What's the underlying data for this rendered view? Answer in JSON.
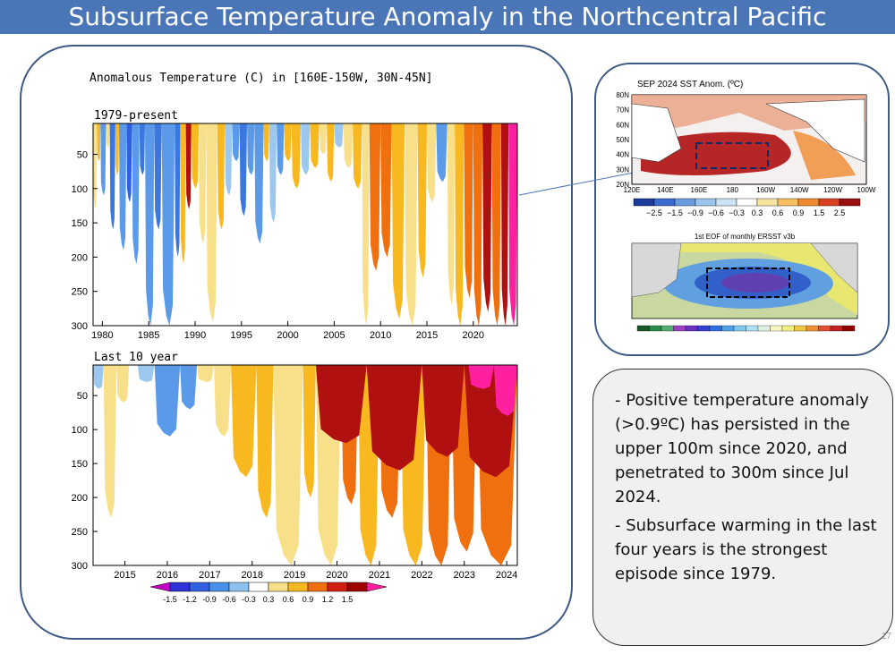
{
  "title": "Subsurface Temperature Anomaly in the Northcentral Pacific",
  "chart_data": [
    {
      "type": "heatmap",
      "title": "Anomalous Temperature (C) in [160E-150W, 30N-45N]",
      "subtitle": "1979-present",
      "x_ticks": [
        "1980",
        "1985",
        "1990",
        "1995",
        "2000",
        "2005",
        "2010",
        "2015",
        "2020"
      ],
      "y_ticks": [
        50,
        100,
        150,
        200,
        250,
        300
      ],
      "xlim": [
        1979.0,
        2024.75
      ],
      "ylim": [
        300,
        5
      ],
      "bands": [
        {
          "x0": 1979.0,
          "x1": 1979.4,
          "depth": 130,
          "value": 0.3
        },
        {
          "x0": 1979.4,
          "x1": 1979.8,
          "depth": 60,
          "value": 0.6
        },
        {
          "x0": 1979.8,
          "x1": 1980.4,
          "depth": 110,
          "value": -0.6
        },
        {
          "x0": 1980.4,
          "x1": 1980.8,
          "depth": 40,
          "value": 0.3
        },
        {
          "x0": 1980.8,
          "x1": 1981.4,
          "depth": 160,
          "value": -0.9
        },
        {
          "x0": 1981.4,
          "x1": 1981.8,
          "depth": 80,
          "value": 0.6
        },
        {
          "x0": 1981.8,
          "x1": 1982.6,
          "depth": 190,
          "value": -0.6
        },
        {
          "x0": 1982.6,
          "x1": 1983.2,
          "depth": 120,
          "value": -1.2
        },
        {
          "x0": 1983.2,
          "x1": 1984.0,
          "depth": 210,
          "value": -0.6
        },
        {
          "x0": 1984.0,
          "x1": 1984.6,
          "depth": 80,
          "value": -0.9
        },
        {
          "x0": 1984.6,
          "x1": 1985.6,
          "depth": 300,
          "value": -0.6
        },
        {
          "x0": 1985.6,
          "x1": 1986.4,
          "depth": 160,
          "value": -0.9
        },
        {
          "x0": 1986.4,
          "x1": 1987.8,
          "depth": 300,
          "value": -0.6
        },
        {
          "x0": 1987.8,
          "x1": 1988.4,
          "depth": 200,
          "value": -0.9
        },
        {
          "x0": 1988.4,
          "x1": 1989.0,
          "depth": 210,
          "value": 0.6
        },
        {
          "x0": 1989.0,
          "x1": 1989.6,
          "depth": 130,
          "value": 1.2
        },
        {
          "x0": 1989.6,
          "x1": 1990.4,
          "depth": 100,
          "value": 0.6
        },
        {
          "x0": 1990.4,
          "x1": 1991.2,
          "depth": 180,
          "value": 0.3
        },
        {
          "x0": 1991.2,
          "x1": 1992.4,
          "depth": 295,
          "value": 0.3
        },
        {
          "x0": 1992.4,
          "x1": 1993.2,
          "depth": 160,
          "value": 0.6
        },
        {
          "x0": 1993.2,
          "x1": 1994.0,
          "depth": 110,
          "value": -0.3
        },
        {
          "x0": 1994.0,
          "x1": 1994.8,
          "depth": 60,
          "value": -0.6
        },
        {
          "x0": 1994.8,
          "x1": 1995.6,
          "depth": 140,
          "value": -0.9
        },
        {
          "x0": 1995.6,
          "x1": 1996.4,
          "depth": 80,
          "value": -0.6
        },
        {
          "x0": 1996.4,
          "x1": 1997.4,
          "depth": 180,
          "value": -0.6
        },
        {
          "x0": 1997.4,
          "x1": 1998.0,
          "depth": 60,
          "value": 0.6
        },
        {
          "x0": 1998.0,
          "x1": 1998.8,
          "depth": 150,
          "value": -0.3
        },
        {
          "x0": 1998.8,
          "x1": 1999.6,
          "depth": 80,
          "value": -0.6
        },
        {
          "x0": 1999.6,
          "x1": 2000.4,
          "depth": 60,
          "value": 0.6
        },
        {
          "x0": 2000.4,
          "x1": 2001.4,
          "depth": 100,
          "value": 0.6
        },
        {
          "x0": 2001.4,
          "x1": 2002.4,
          "depth": 80,
          "value": -0.3
        },
        {
          "x0": 2002.4,
          "x1": 2003.4,
          "depth": 70,
          "value": 0.6
        },
        {
          "x0": 2003.4,
          "x1": 2004.2,
          "depth": 50,
          "value": 0.3
        },
        {
          "x0": 2004.2,
          "x1": 2005.0,
          "depth": 90,
          "value": 0.6
        },
        {
          "x0": 2005.0,
          "x1": 2006.0,
          "depth": 40,
          "value": -0.3
        },
        {
          "x0": 2006.0,
          "x1": 2007.0,
          "depth": 70,
          "value": 0.3
        },
        {
          "x0": 2007.0,
          "x1": 2008.0,
          "depth": 100,
          "value": 0.6
        },
        {
          "x0": 2008.0,
          "x1": 2008.8,
          "depth": 300,
          "value": 0.3
        },
        {
          "x0": 2008.8,
          "x1": 2010.0,
          "depth": 220,
          "value": 0.9
        },
        {
          "x0": 2010.0,
          "x1": 2011.2,
          "depth": 200,
          "value": 0.9
        },
        {
          "x0": 2011.2,
          "x1": 2012.6,
          "depth": 290,
          "value": 0.6
        },
        {
          "x0": 2012.6,
          "x1": 2014.0,
          "depth": 300,
          "value": 0.3
        },
        {
          "x0": 2014.0,
          "x1": 2015.0,
          "depth": 230,
          "value": 0.6
        },
        {
          "x0": 2015.0,
          "x1": 2016.0,
          "depth": 120,
          "value": 0.3
        },
        {
          "x0": 2016.0,
          "x1": 2017.2,
          "depth": 90,
          "value": -0.6
        },
        {
          "x0": 2017.2,
          "x1": 2018.0,
          "depth": 270,
          "value": 0.3
        },
        {
          "x0": 2018.0,
          "x1": 2019.0,
          "depth": 300,
          "value": 0.6
        },
        {
          "x0": 2019.0,
          "x1": 2020.0,
          "depth": 260,
          "value": 0.9
        },
        {
          "x0": 2020.0,
          "x1": 2021.0,
          "depth": 300,
          "value": 0.9
        },
        {
          "x0": 2021.0,
          "x1": 2022.0,
          "depth": 280,
          "value": 1.2
        },
        {
          "x0": 2022.0,
          "x1": 2023.0,
          "depth": 300,
          "value": 0.9
        },
        {
          "x0": 2023.0,
          "x1": 2023.8,
          "depth": 300,
          "value": 1.2
        },
        {
          "x0": 2023.8,
          "x1": 2024.75,
          "depth": 300,
          "value": 1.5
        }
      ]
    },
    {
      "type": "heatmap",
      "subtitle": "Last 10 year",
      "x_ticks": [
        "2015",
        "2016",
        "2017",
        "2018",
        "2019",
        "2020",
        "2021",
        "2022",
        "2023",
        "2024"
      ],
      "y_ticks": [
        50,
        100,
        150,
        200,
        250,
        300
      ],
      "xlim": [
        2014.75,
        2024.75
      ],
      "ylim": [
        300,
        5
      ],
      "bands": [
        {
          "x0": 2014.75,
          "x1": 2015.0,
          "depth": 40,
          "value": -0.3
        },
        {
          "x0": 2015.0,
          "x1": 2015.3,
          "depth": 230,
          "value": 0.3
        },
        {
          "x0": 2015.3,
          "x1": 2015.6,
          "depth": 60,
          "value": 0.3
        },
        {
          "x0": 2015.8,
          "x1": 2016.2,
          "depth": 30,
          "value": -0.3
        },
        {
          "x0": 2016.2,
          "x1": 2016.8,
          "depth": 110,
          "value": -0.6
        },
        {
          "x0": 2016.8,
          "x1": 2017.2,
          "depth": 70,
          "value": -0.6
        },
        {
          "x0": 2017.2,
          "x1": 2017.6,
          "depth": 30,
          "value": 0.3
        },
        {
          "x0": 2017.6,
          "x1": 2018.0,
          "depth": 110,
          "value": 0.3
        },
        {
          "x0": 2018.0,
          "x1": 2018.6,
          "depth": 170,
          "value": 0.6
        },
        {
          "x0": 2018.6,
          "x1": 2019.0,
          "depth": 230,
          "value": 0.6
        },
        {
          "x0": 2019.0,
          "x1": 2019.7,
          "depth": 300,
          "value": 0.3
        },
        {
          "x0": 2019.7,
          "x1": 2020.0,
          "depth": 200,
          "value": 0.6
        },
        {
          "x0": 2020.0,
          "x1": 2020.6,
          "depth": 300,
          "value": 0.3
        },
        {
          "x0": 2020.6,
          "x1": 2021.0,
          "depth": 210,
          "value": 0.9
        },
        {
          "x0": 2021.0,
          "x1": 2021.5,
          "depth": 300,
          "value": 0.6
        },
        {
          "x0": 2021.5,
          "x1": 2022.0,
          "depth": 230,
          "value": 0.9
        },
        {
          "x0": 2022.0,
          "x1": 2022.6,
          "depth": 300,
          "value": 0.6
        },
        {
          "x0": 2022.6,
          "x1": 2023.2,
          "depth": 300,
          "value": 0.9
        },
        {
          "x0": 2023.2,
          "x1": 2023.8,
          "depth": 280,
          "value": 0.9
        },
        {
          "x0": 2023.8,
          "x1": 2024.75,
          "depth": 300,
          "value": 0.9
        }
      ],
      "overlays": [
        {
          "x0": 2020.0,
          "x1": 2021.2,
          "depth": 120,
          "value": 1.2
        },
        {
          "x0": 2021.2,
          "x1": 2022.5,
          "depth": 160,
          "value": 1.2
        },
        {
          "x0": 2022.5,
          "x1": 2023.5,
          "depth": 140,
          "value": 1.2
        },
        {
          "x0": 2023.5,
          "x1": 2024.75,
          "depth": 170,
          "value": 1.2
        },
        {
          "x0": 2023.6,
          "x1": 2024.2,
          "depth": 40,
          "value": 1.5
        },
        {
          "x0": 2024.2,
          "x1": 2024.75,
          "depth": 80,
          "value": 1.5
        }
      ]
    }
  ],
  "legend": {
    "labels": [
      "-1.5",
      "-1.2",
      "-0.9",
      "-0.6",
      "-0.3",
      "0.3",
      "0.6",
      "0.9",
      "1.2",
      "1.5"
    ],
    "colors": [
      "#c000c0",
      "#3030d8",
      "#3060e0",
      "#4a90e8",
      "#8cc0f0",
      "#ffffff",
      "#f8e08a",
      "#f8b820",
      "#f07010",
      "#d02010",
      "#a00000",
      "#ff20a0"
    ]
  },
  "sst_map": {
    "title": "SEP 2024 SST Anom. (ºC)",
    "lat_ticks": [
      "80N",
      "70N",
      "60N",
      "50N",
      "40N",
      "30N",
      "20N"
    ],
    "lon_ticks": [
      "120E",
      "140E",
      "160E",
      "180",
      "160W",
      "140W",
      "120W",
      "100W"
    ],
    "colorbar_labels": [
      "−2.5",
      "−1.5",
      "−0.9",
      "−0.6",
      "−0.3",
      "0.3",
      "0.6",
      "0.9",
      "1.5",
      "2.5"
    ],
    "colorbar_colors": [
      "#1a3a9c",
      "#3a6ad0",
      "#6a9ae0",
      "#9cc4ec",
      "#cce2f6",
      "#ffffff",
      "#f8e4a0",
      "#f8c060",
      "#f08a30",
      "#d84020",
      "#9a1010"
    ]
  },
  "eof_map": {
    "title": "1st EOF of monthly ERSST v3b"
  },
  "bullets": [
    "- Positive temperature anomaly (>0.9ºC) has persisted in the upper 100m since 2020, and penetrated to 300m since Jul 2024.",
    "- Subsurface warming in the last four years is the strongest episode since 1979."
  ],
  "page_number": "17"
}
